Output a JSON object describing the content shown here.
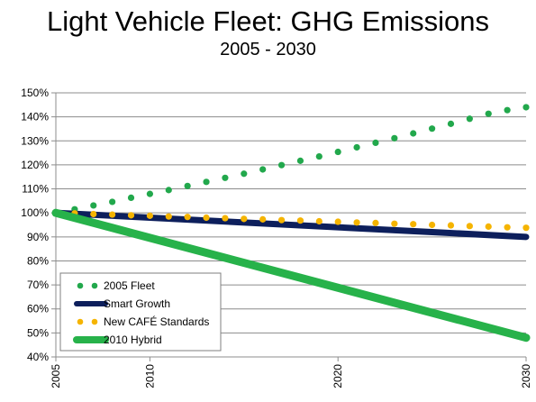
{
  "chart_data": {
    "type": "line",
    "title": "Light Vehicle Fleet: GHG Emissions",
    "subtitle": "2005 - 2030",
    "xlabel": "",
    "ylabel": "",
    "xlim": [
      2005,
      2030
    ],
    "ylim": [
      40,
      150
    ],
    "y_ticks": [
      "40%",
      "50%",
      "60%",
      "70%",
      "80%",
      "90%",
      "100%",
      "110%",
      "120%",
      "130%",
      "140%",
      "150%"
    ],
    "y_tick_values": [
      40,
      50,
      60,
      70,
      80,
      90,
      100,
      110,
      120,
      130,
      140,
      150
    ],
    "x_ticks": [
      "2005",
      "2010",
      "2020",
      "2030"
    ],
    "x_tick_values": [
      2005,
      2010,
      2020,
      2030
    ],
    "grid": "horizontal",
    "legend_position": "bottom-left",
    "series": [
      {
        "name": "2005 Fleet",
        "style": "dotted",
        "color": "#22a84c",
        "x": [
          2005,
          2006,
          2007,
          2008,
          2009,
          2010,
          2011,
          2012,
          2013,
          2014,
          2015,
          2016,
          2017,
          2018,
          2019,
          2020,
          2021,
          2022,
          2023,
          2024,
          2025,
          2026,
          2027,
          2028,
          2029,
          2030
        ],
        "values": [
          100,
          101.5,
          103.1,
          104.6,
          106.3,
          107.9,
          109.5,
          111.2,
          112.9,
          114.6,
          116.3,
          118.1,
          119.9,
          121.7,
          123.5,
          125.4,
          127.3,
          129.2,
          131.1,
          133.1,
          135.1,
          137.1,
          139.2,
          141.3,
          142.8,
          144.0
        ]
      },
      {
        "name": "Smart Growth",
        "style": "thick-line",
        "color": "#0d1f5c",
        "x": [
          2005,
          2030
        ],
        "values": [
          100,
          90
        ]
      },
      {
        "name": "New CAFÉ Standards",
        "style": "dotted",
        "color": "#f5b400",
        "x": [
          2005,
          2006,
          2007,
          2008,
          2009,
          2010,
          2011,
          2012,
          2013,
          2014,
          2015,
          2016,
          2017,
          2018,
          2019,
          2020,
          2021,
          2022,
          2023,
          2024,
          2025,
          2026,
          2027,
          2028,
          2029,
          2030
        ],
        "values": [
          100,
          99.8,
          99.5,
          99.3,
          99.0,
          98.8,
          98.5,
          98.3,
          98.0,
          97.8,
          97.5,
          97.3,
          97.0,
          96.8,
          96.5,
          96.3,
          96.0,
          95.8,
          95.5,
          95.3,
          95.0,
          94.8,
          94.5,
          94.3,
          94.0,
          93.8
        ]
      },
      {
        "name": "2010 Hybrid",
        "style": "thick-line",
        "color": "#27b24a",
        "x": [
          2005,
          2030
        ],
        "values": [
          100,
          48
        ]
      }
    ]
  }
}
